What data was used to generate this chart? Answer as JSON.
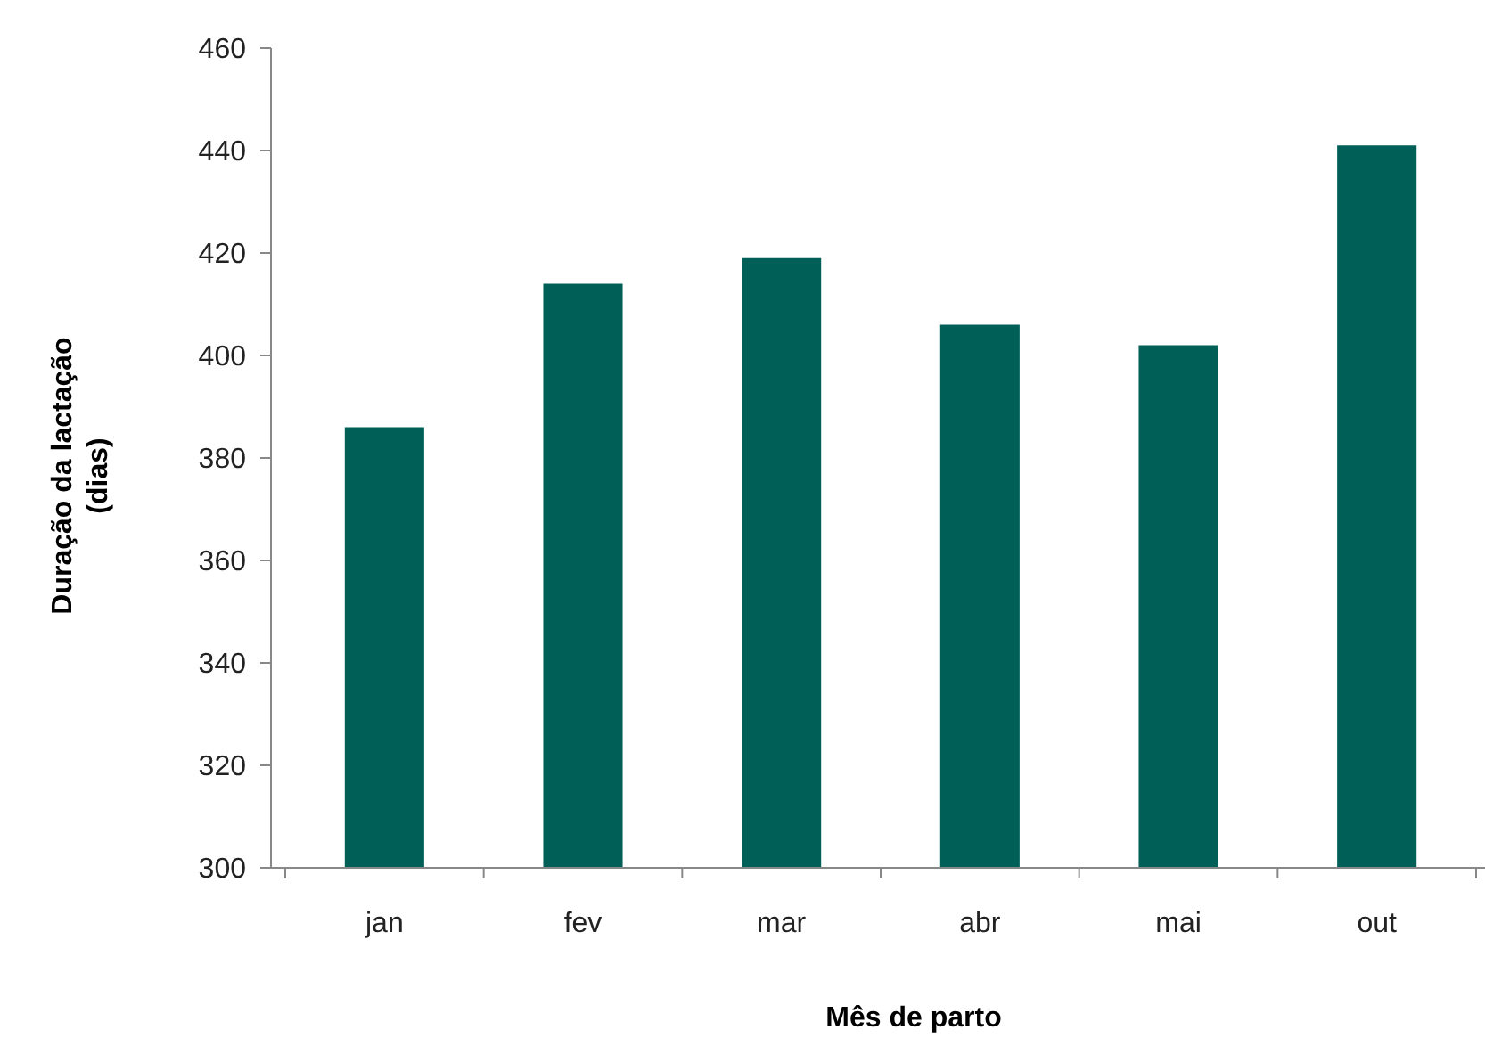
{
  "chart_data": {
    "type": "bar",
    "xlabel": "Mês de parto",
    "ylabel": "Duração da lactação\n(dias)",
    "categories": [
      "jan",
      "fev",
      "mar",
      "abr",
      "mai",
      "out"
    ],
    "values": [
      386,
      414,
      419,
      406,
      402,
      441
    ],
    "color": "#006058",
    "ylim": [
      300,
      460
    ],
    "yticks": [
      300,
      320,
      340,
      360,
      380,
      400,
      420,
      440,
      460
    ],
    "grid": false
  }
}
